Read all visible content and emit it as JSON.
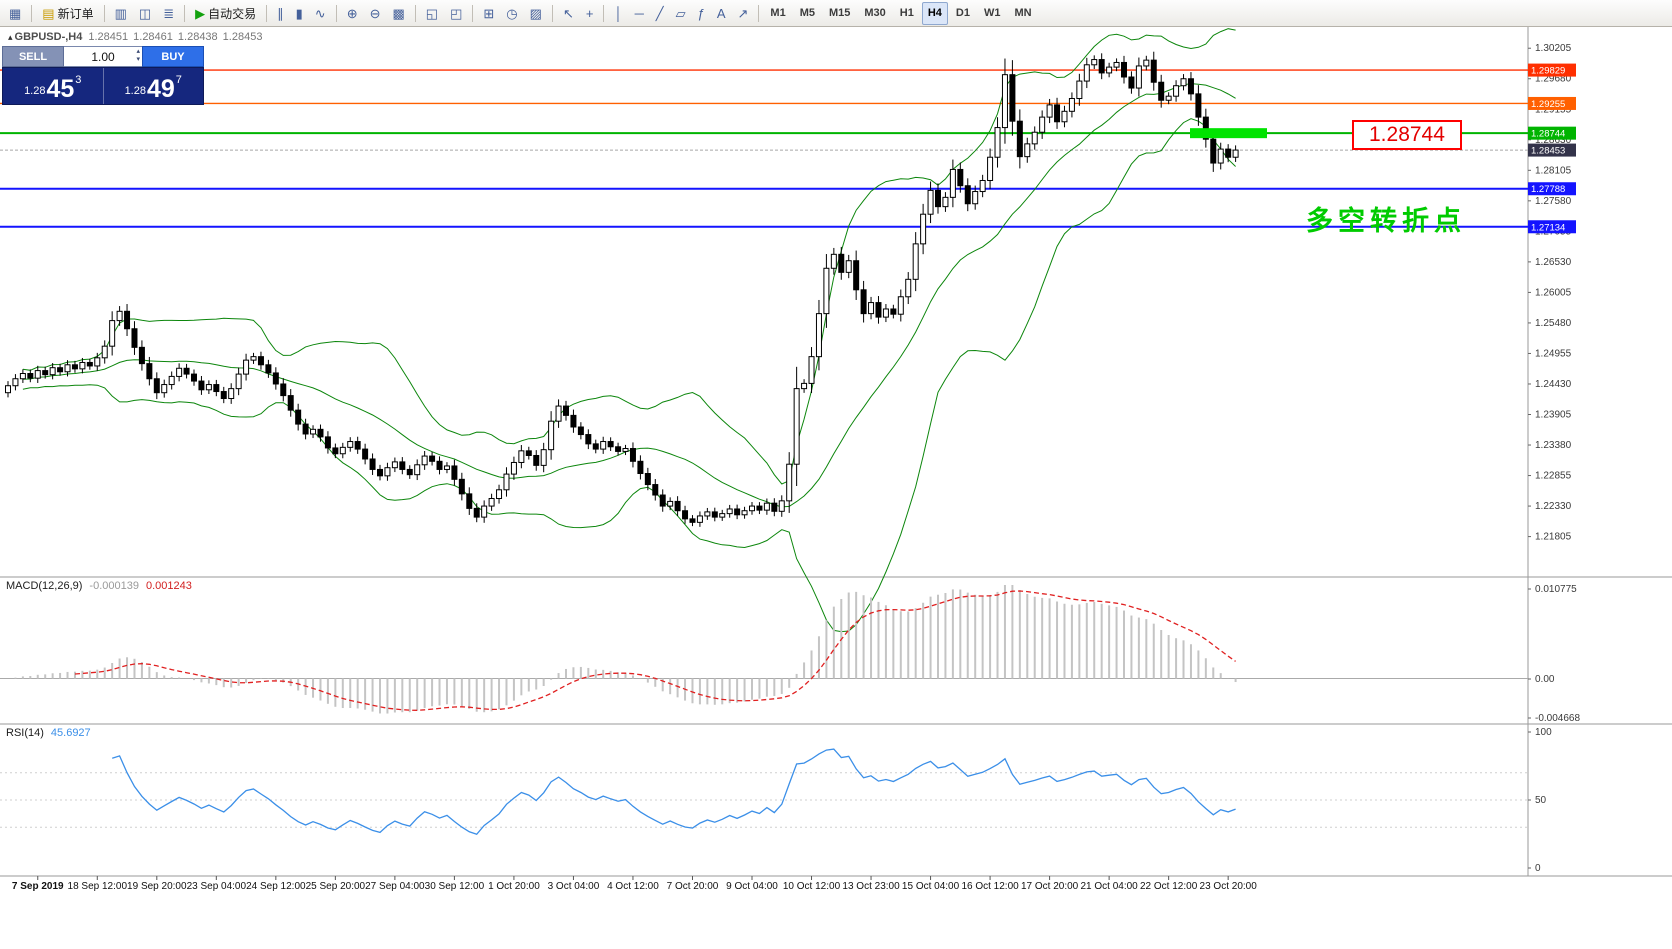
{
  "toolbar": {
    "groups": [
      {
        "items": [
          {
            "icon": "▦",
            "name": "new-chart"
          }
        ]
      },
      {
        "items": [
          {
            "icon": "▤",
            "name": "new-order",
            "label": "新订单",
            "icon_color": "#c89a00"
          }
        ]
      },
      {
        "items": [
          {
            "icon": "▥",
            "name": "market-watch"
          },
          {
            "icon": "◫",
            "name": "data-window"
          },
          {
            "icon": "≣",
            "name": "terminal"
          }
        ]
      },
      {
        "items": [
          {
            "icon": "▶",
            "name": "auto-trading",
            "label": "自动交易",
            "icon_color": "#13a10e"
          }
        ]
      },
      {
        "items": [
          {
            "icon": "∥",
            "name": "bar-chart"
          },
          {
            "icon": "▮",
            "name": "candlestick-chart"
          },
          {
            "icon": "∿",
            "name": "line-chart"
          }
        ]
      },
      {
        "items": [
          {
            "icon": "⊕",
            "name": "zoom-in"
          },
          {
            "icon": "⊖",
            "name": "zoom-out"
          },
          {
            "icon": "▩",
            "name": "grid"
          }
        ]
      },
      {
        "items": [
          {
            "icon": "◱",
            "name": "tile-windows"
          },
          {
            "icon": "◰",
            "name": "cascade-windows"
          }
        ]
      },
      {
        "items": [
          {
            "icon": "⊞",
            "name": "indicators"
          },
          {
            "icon": "◷",
            "name": "periods"
          },
          {
            "icon": "▨",
            "name": "templates"
          }
        ]
      },
      {
        "items": [
          {
            "icon": "↖",
            "name": "cursor"
          },
          {
            "icon": "+",
            "name": "crosshair"
          }
        ]
      },
      {
        "items": [
          {
            "icon": "│",
            "name": "vertical-line"
          },
          {
            "icon": "─",
            "name": "horizontal-line"
          },
          {
            "icon": "╱",
            "name": "trendline"
          },
          {
            "icon": "▱",
            "name": "equidistant-channel"
          },
          {
            "icon": "ƒ",
            "name": "fibonacci"
          },
          {
            "icon": "A",
            "name": "text-label"
          },
          {
            "icon": "↗",
            "name": "arrow-tools"
          }
        ]
      }
    ],
    "timeframes": [
      {
        "label": "M1"
      },
      {
        "label": "M5"
      },
      {
        "label": "M15"
      },
      {
        "label": "M30"
      },
      {
        "label": "H1"
      },
      {
        "label": "H4",
        "active": true
      },
      {
        "label": "D1"
      },
      {
        "label": "W1"
      },
      {
        "label": "MN"
      }
    ]
  },
  "header": {
    "marker": "▴",
    "symbol": "GBPUSD-,H4",
    "open": "1.28451",
    "high": "1.28461",
    "low": "1.28438",
    "close": "1.28453"
  },
  "one_click": {
    "sell_label": "SELL",
    "buy_label": "BUY",
    "volume": "1.00",
    "sell_price": {
      "base": "1.28",
      "big": "45",
      "sup": "3"
    },
    "buy_price": {
      "base": "1.28",
      "big": "49",
      "sup": "7"
    }
  },
  "annotations": {
    "price_label": "1.28744",
    "turning_point_text": "多空转折点"
  },
  "chart_data": {
    "type": "candlestick",
    "symbol": "GBPUSD",
    "timeframe": "H4",
    "closes": [
      1.244,
      1.2452,
      1.2461,
      1.2453,
      1.2466,
      1.2459,
      1.2471,
      1.2464,
      1.2476,
      1.2469,
      1.248,
      1.2474,
      1.2488,
      1.2508,
      1.2552,
      1.2568,
      1.2538,
      1.2506,
      1.2478,
      1.2452,
      1.2428,
      1.2442,
      1.2456,
      1.247,
      1.246,
      1.2448,
      1.2433,
      1.2442,
      1.243,
      1.2418,
      1.2435,
      1.246,
      1.2484,
      1.249,
      1.2476,
      1.2462,
      1.2443,
      1.2423,
      1.2398,
      1.2374,
      1.2357,
      1.2365,
      1.2352,
      1.2333,
      1.2323,
      1.2334,
      1.2344,
      1.2331,
      1.2314,
      1.2296,
      1.2285,
      1.2299,
      1.2309,
      1.2296,
      1.2287,
      1.2304,
      1.2319,
      1.231,
      1.2296,
      1.2302,
      1.2279,
      1.2254,
      1.2229,
      1.2214,
      1.2233,
      1.2246,
      1.2261,
      1.2288,
      1.2308,
      1.2328,
      1.232,
      1.2303,
      1.233,
      1.2379,
      1.2405,
      1.2389,
      1.2369,
      1.2356,
      1.234,
      1.2331,
      1.2344,
      1.2335,
      1.2327,
      1.2332,
      1.231,
      1.2289,
      1.227,
      1.2252,
      1.2233,
      1.2241,
      1.2225,
      1.2211,
      1.2205,
      1.2216,
      1.2223,
      1.2214,
      1.222,
      1.2228,
      1.2218,
      1.2225,
      1.2233,
      1.2226,
      1.2238,
      1.2224,
      1.2242,
      1.2305,
      1.2435,
      1.2444,
      1.249,
      1.2564,
      1.2642,
      1.2666,
      1.2635,
      1.2655,
      1.2605,
      1.2564,
      1.2583,
      1.2558,
      1.2572,
      1.2563,
      1.2593,
      1.2623,
      1.2684,
      1.2735,
      1.2776,
      1.2748,
      1.2764,
      1.2812,
      1.2784,
      1.2753,
      1.2774,
      1.2793,
      1.2833,
      1.2884,
      1.2975,
      1.2895,
      1.2834,
      1.2856,
      1.2876,
      1.2902,
      1.2923,
      1.2894,
      1.2912,
      1.2934,
      1.2964,
      1.2992,
      1.3001,
      1.2978,
      1.2988,
      1.2996,
      1.2971,
      1.2952,
      1.299,
      1.3,
      1.2962,
      1.2931,
      1.2938,
      1.2956,
      1.2968,
      1.2942,
      1.2902,
      1.2864,
      1.2823,
      1.2847,
      1.2833,
      1.28453
    ],
    "price_axis": {
      "top": 1.3057,
      "bottom": 1.2111,
      "labels": [
        "1.30205",
        "1.29680",
        "1.29155",
        "1.28630",
        "1.28105",
        "1.27580",
        "1.27055",
        "1.26530",
        "1.26005",
        "1.25480",
        "1.24955",
        "1.24430",
        "1.23905",
        "1.23380",
        "1.22855",
        "1.22330",
        "1.21805"
      ]
    },
    "levels": [
      {
        "value": 1.29829,
        "label": "1.29829",
        "color": "#ff2f00",
        "width": 1.3
      },
      {
        "value": 1.29255,
        "label": "1.29255",
        "color": "#ff6000",
        "width": 1.3
      },
      {
        "value": 1.28744,
        "label": "1.28744",
        "color": "#00b400",
        "width": 2
      },
      {
        "value": 1.27788,
        "label": "1.27788",
        "color": "#1414ff",
        "width": 2
      },
      {
        "value": 1.27134,
        "label": "1.27134",
        "color": "#1414ff",
        "width": 2
      }
    ],
    "highlight": {
      "price": 1.28744,
      "color": "#00e300"
    },
    "current_price": {
      "value": 1.28453,
      "label": "1.28453",
      "color": "#33334a"
    },
    "bollinger": {
      "period": 20,
      "deviation": 2,
      "color": "#0c860c"
    },
    "macd": {
      "label": "MACD(12,26,9)",
      "value": "-0.000139",
      "signal_value": "0.001243",
      "axis": [
        "0.010775",
        "0.00",
        "-0.004668"
      ],
      "range": [
        -0.004668,
        0.010775
      ],
      "histogram_color": "#c4c4c4",
      "signal_color": "#e02020"
    },
    "rsi": {
      "label": "RSI(14)",
      "value": "45.6927",
      "axis": [
        "100",
        "50",
        "0"
      ],
      "levels": [
        70,
        50,
        30
      ],
      "color": "#3b8fe8"
    },
    "time_labels": {
      "first_index": 4,
      "stride": 8,
      "labels": [
        "7 Sep 2019",
        "18 Sep 12:00",
        "19 Sep 20:00",
        "23 Sep 04:00",
        "24 Sep 12:00",
        "25 Sep 20:00",
        "27 Sep 04:00",
        "30 Sep 12:00",
        "1 Oct 20:00",
        "3 Oct 04:00",
        "4 Oct 12:00",
        "7 Oct 20:00",
        "9 Oct 04:00",
        "10 Oct 12:00",
        "13 Oct 23:00",
        "15 Oct 04:00",
        "16 Oct 12:00",
        "17 Oct 20:00",
        "21 Oct 04:00",
        "22 Oct 12:00",
        "23 Oct 20:00"
      ]
    }
  }
}
